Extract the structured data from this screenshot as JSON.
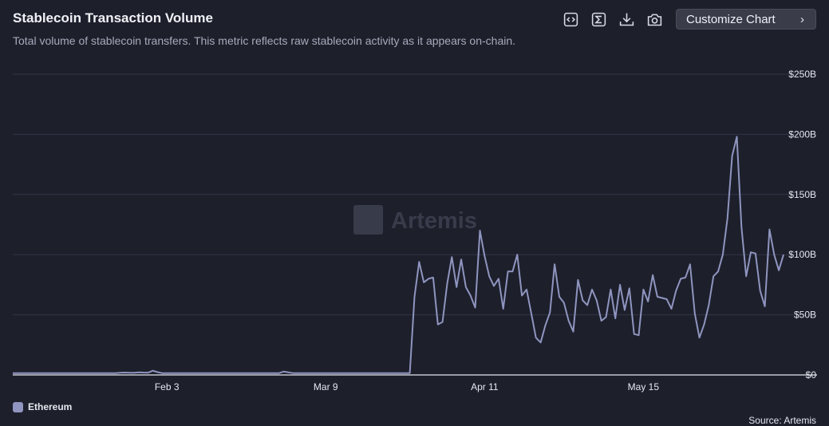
{
  "header": {
    "title": "Stablecoin Transaction Volume",
    "subtitle": "Total volume of stablecoin transfers. This metric reflects raw stablecoin activity as it appears on-chain.",
    "customize_label": "Customize Chart",
    "tools": [
      "embed-icon",
      "sigma-icon",
      "download-icon",
      "camera-icon"
    ]
  },
  "watermark": "Artemis",
  "footer": {
    "source": "Source: Artemis"
  },
  "colors": {
    "series": "#8f95bf",
    "background": "#1d1f2b",
    "grid": "#33364a"
  },
  "chart_data": {
    "type": "line",
    "x_ticks": [
      "Feb 3",
      "Mar 9",
      "Apr 11",
      "May 15"
    ],
    "y_ticks": [
      "$0",
      "$50B",
      "$100B",
      "$150B",
      "$200B",
      "$250B"
    ],
    "ylim": [
      0,
      250
    ],
    "y_unit": "B",
    "grid": true,
    "legend_position": "bottom-left",
    "series": [
      {
        "name": "Ethereum",
        "values": [
          1.5,
          1.5,
          1.5,
          1.5,
          1.5,
          1.5,
          1.5,
          1.5,
          1.5,
          1.5,
          1.5,
          1.5,
          1.5,
          1.5,
          1.5,
          1.5,
          1.5,
          1.5,
          1.5,
          1.5,
          1.5,
          1.5,
          1.5,
          1.8,
          2,
          1.8,
          1.8,
          2.2,
          2,
          1.9,
          3.5,
          2.3,
          1.5,
          1.5,
          1.5,
          1.5,
          1.5,
          1.5,
          1.5,
          1.5,
          1.5,
          1.5,
          1.5,
          1.5,
          1.5,
          1.5,
          1.5,
          1.5,
          1.5,
          1.5,
          1.5,
          1.5,
          1.5,
          1.5,
          1.5,
          1.5,
          1.5,
          1.5,
          2.8,
          2.2,
          1.5,
          1.5,
          1.5,
          1.5,
          1.5,
          1.5,
          1.5,
          1.5,
          1.5,
          1.5,
          1.5,
          1.5,
          1.5,
          1.5,
          1.5,
          1.5,
          1.5,
          1.5,
          1.5,
          1.5,
          1.5,
          1.5,
          1.5,
          1.5,
          1.5,
          1.5,
          65,
          94,
          77,
          80,
          81,
          42,
          44,
          76,
          98,
          73,
          96,
          73,
          66,
          56,
          120,
          99,
          82,
          74,
          80,
          55,
          86,
          86,
          100,
          66,
          71,
          51,
          31,
          27,
          41,
          52,
          92,
          65,
          60,
          45,
          36,
          79,
          62,
          58,
          71,
          62,
          45,
          48,
          71,
          47,
          75,
          54,
          72,
          34,
          33,
          71,
          61,
          83,
          65,
          64,
          63,
          55,
          70,
          80,
          81,
          92,
          51,
          31,
          42,
          58,
          82,
          86,
          100,
          130,
          182,
          198,
          123,
          82,
          102,
          101,
          70,
          57,
          121,
          100,
          87,
          100
        ]
      }
    ]
  }
}
